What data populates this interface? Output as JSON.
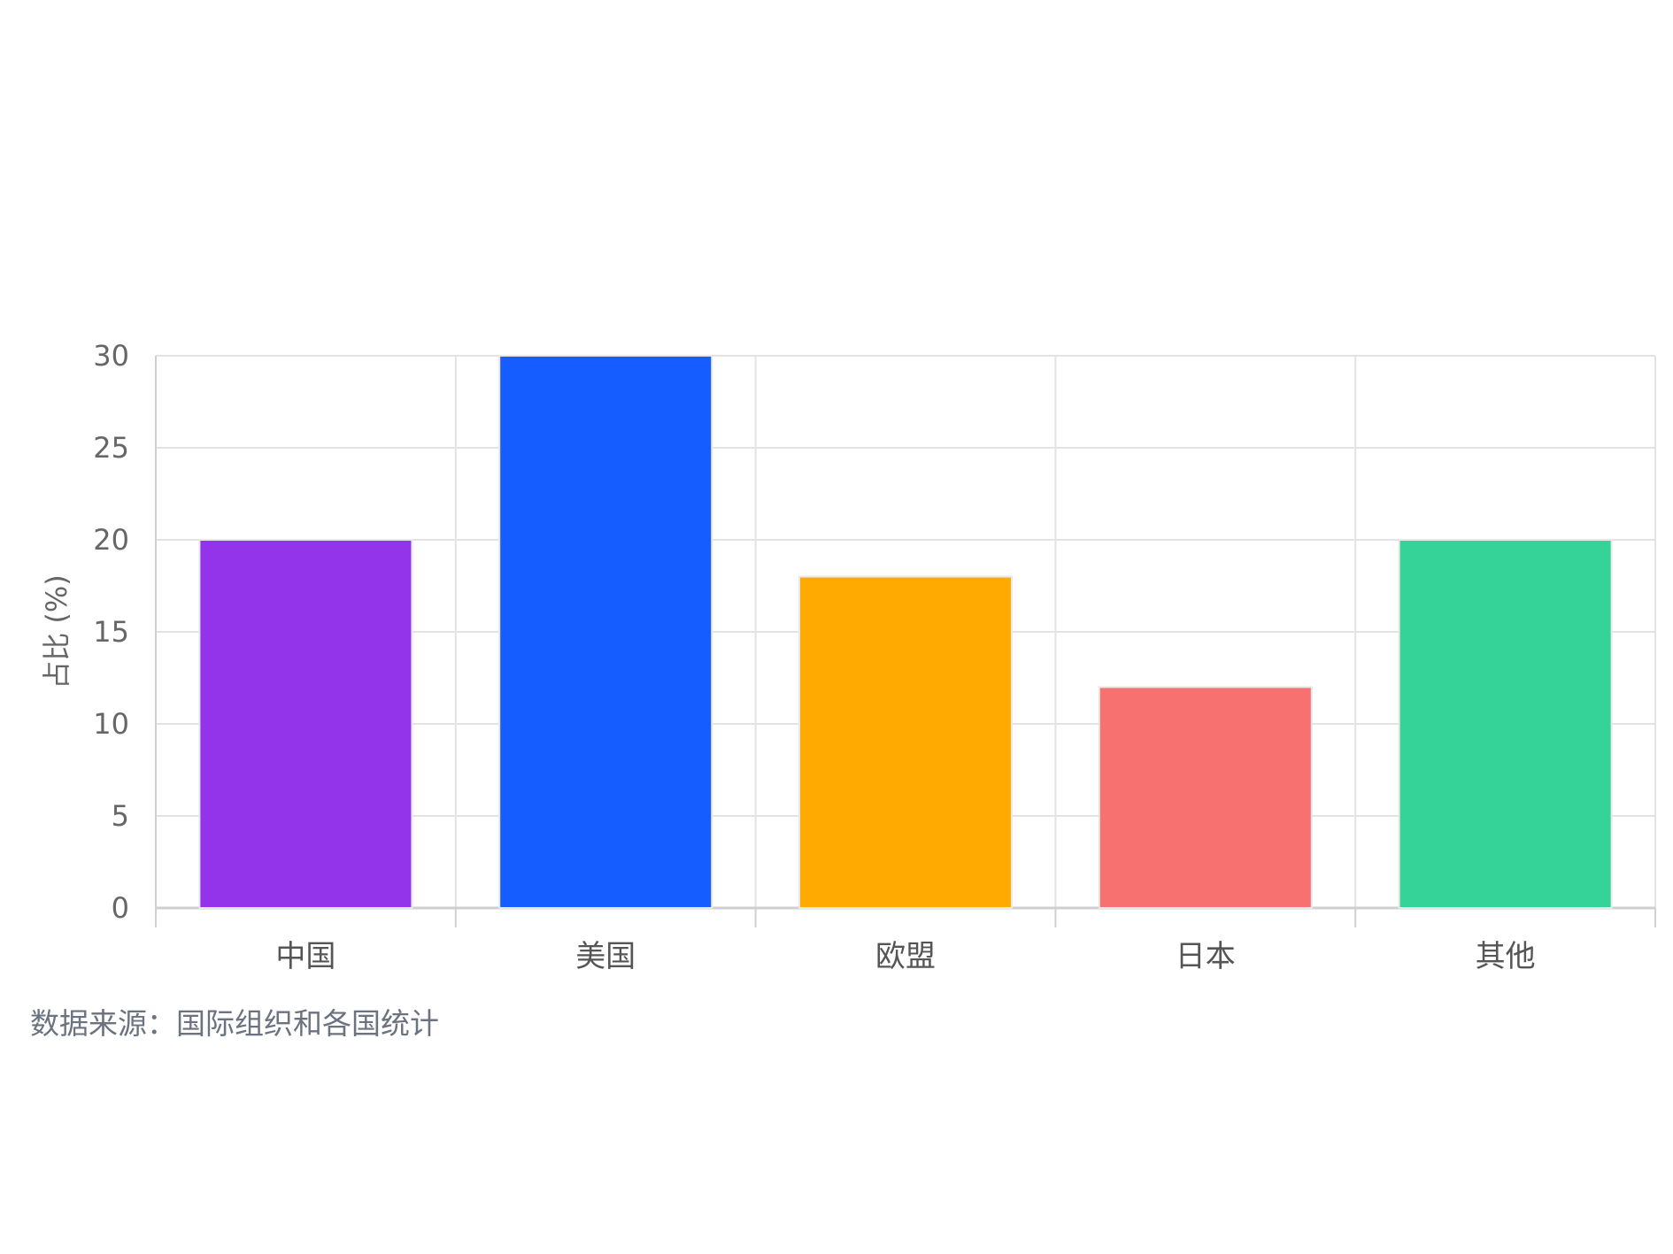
{
  "chart_data": {
    "type": "bar",
    "title": "",
    "xlabel": "",
    "ylabel": "占比 (%)",
    "categories": [
      "中国",
      "美国",
      "欧盟",
      "日本",
      "其他"
    ],
    "values": [
      20,
      30,
      18,
      12,
      20
    ],
    "colors": [
      "#9333ea",
      "#165dff",
      "#ffaa00",
      "#f87171",
      "#36d399"
    ],
    "ylim": [
      0,
      30
    ],
    "yticks": [
      0,
      5,
      10,
      15,
      20,
      25,
      30
    ],
    "grid": true,
    "legend": "none"
  },
  "source": "数据来源：国际组织和各国统计"
}
